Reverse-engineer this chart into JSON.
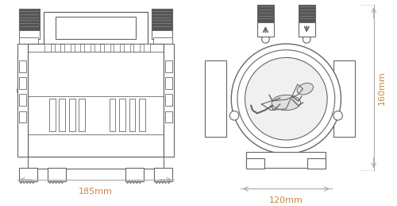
{
  "background_color": "#ffffff",
  "line_color": "#666666",
  "dim_color": "#aaaaaa",
  "fig_width": 5.0,
  "fig_height": 2.59,
  "dpi": 100,
  "label_185": "185mm",
  "label_120": "120mm",
  "label_160": "160mm"
}
